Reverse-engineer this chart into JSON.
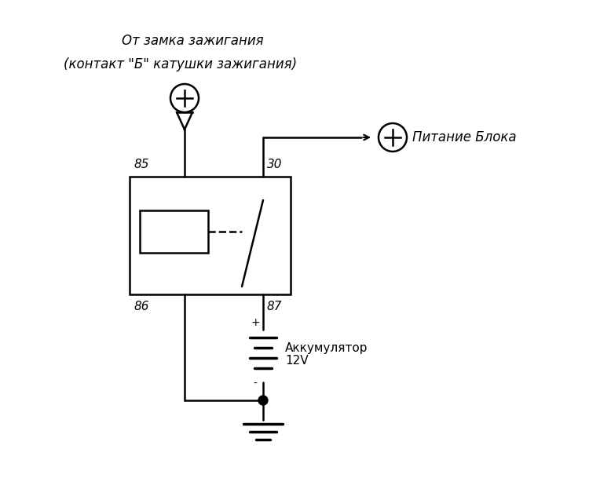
{
  "bg_color": "#ffffff",
  "line_color": "#000000",
  "text_color": "#000000",
  "title_line1": "От замка зажигания",
  "title_line2": "(контакт \"Б\" катушки зажигания)",
  "label_85": "85",
  "label_86": "86",
  "label_30": "30",
  "label_87": "87",
  "label_pitanie": "Питание Блока",
  "label_akk": "Аккумулятор",
  "label_12v": "12V",
  "label_plus": "+",
  "label_minus": "-",
  "figsize": [
    7.78,
    6.14
  ],
  "dpi": 100
}
